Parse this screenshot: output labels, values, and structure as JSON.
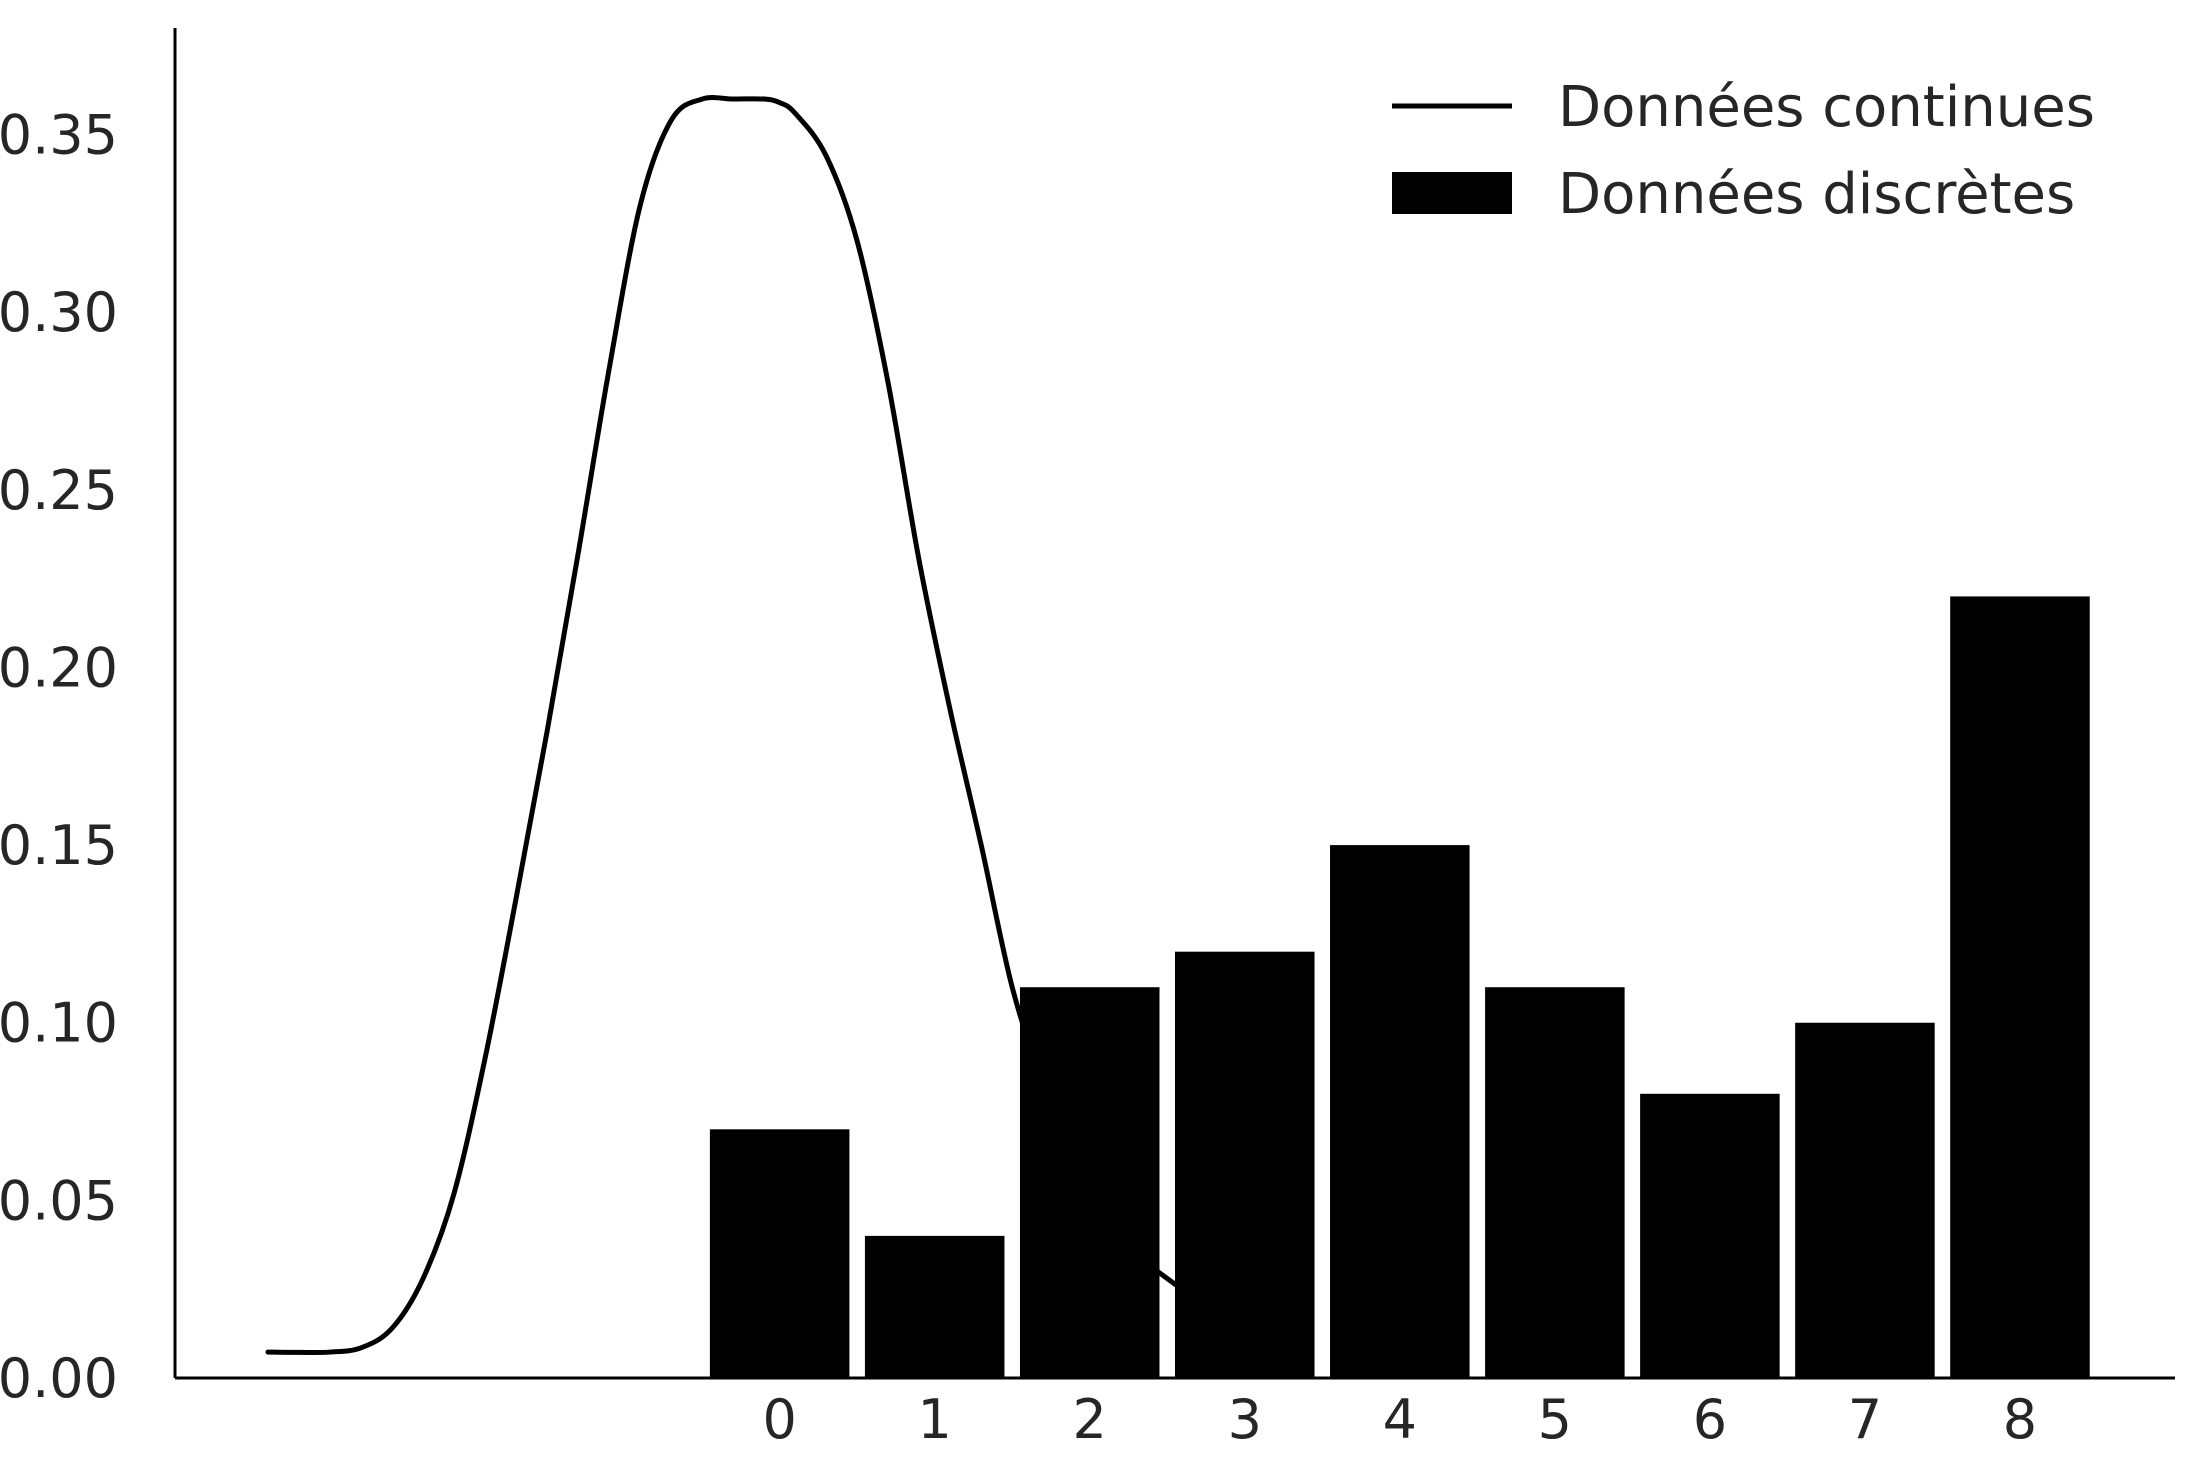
{
  "chart_data": {
    "type": "bar",
    "title": "",
    "xlabel": "",
    "ylabel": "",
    "xlim": [
      -3.9,
      9.0
    ],
    "ylim": [
      0,
      0.38
    ],
    "xticks": [
      "0",
      "1",
      "2",
      "3",
      "4",
      "5",
      "6",
      "7",
      "8"
    ],
    "yticks": [
      "0.00",
      "0.05",
      "0.10",
      "0.15",
      "0.20",
      "0.25",
      "0.30",
      "0.35"
    ],
    "grid": false,
    "legend_position": "top-right",
    "series": [
      {
        "name": "Données continues",
        "kind": "line",
        "color": "#000000",
        "x": [
          -3.3,
          -3.1,
          -2.9,
          -2.7,
          -2.5,
          -2.3,
          -2.1,
          -1.9,
          -1.7,
          -1.5,
          -1.3,
          -1.1,
          -0.9,
          -0.7,
          -0.5,
          -0.3,
          -0.1,
          0.0,
          0.1,
          0.3,
          0.5,
          0.7,
          0.9,
          1.1,
          1.3,
          1.5,
          1.7,
          1.9,
          2.1,
          2.3,
          2.5,
          2.7,
          2.9
        ],
        "y": [
          0.0073,
          0.0072,
          0.0073,
          0.0085,
          0.014,
          0.028,
          0.052,
          0.09,
          0.135,
          0.182,
          0.232,
          0.284,
          0.33,
          0.354,
          0.36,
          0.36,
          0.36,
          0.359,
          0.356,
          0.344,
          0.32,
          0.28,
          0.23,
          0.188,
          0.15,
          0.11,
          0.083,
          0.06,
          0.045,
          0.035,
          0.028,
          0.022,
          0.018
        ]
      },
      {
        "name": "Données discrètes",
        "kind": "bar",
        "color": "#000000",
        "categories": [
          0,
          1,
          2,
          3,
          4,
          5,
          6,
          7,
          8
        ],
        "values": [
          0.07,
          0.04,
          0.11,
          0.12,
          0.15,
          0.11,
          0.08,
          0.1,
          0.22
        ]
      }
    ]
  }
}
